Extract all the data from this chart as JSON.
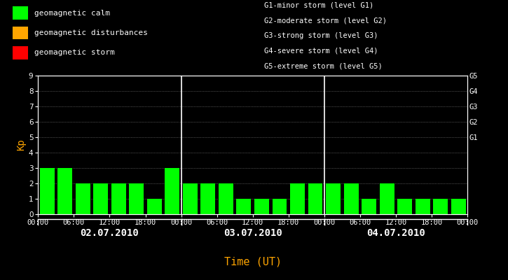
{
  "background_color": "#000000",
  "plot_bg_color": "#000000",
  "bar_color_calm": "#00ff00",
  "bar_color_disturb": "#ffa500",
  "bar_color_storm": "#ff0000",
  "axis_color": "#ffffff",
  "ylabel_color": "#ffa500",
  "xlabel": "Time (UT)",
  "xlabel_color": "#ffa500",
  "ylabel": "Kp",
  "ylim": [
    0,
    9
  ],
  "yticks": [
    0,
    1,
    2,
    3,
    4,
    5,
    6,
    7,
    8,
    9
  ],
  "right_labels": [
    "G1",
    "G2",
    "G3",
    "G4",
    "G5"
  ],
  "right_label_yticks": [
    5,
    6,
    7,
    8,
    9
  ],
  "dates": [
    "02.07.2010",
    "03.07.2010",
    "04.07.2010"
  ],
  "kp_values": [
    3,
    3,
    2,
    2,
    2,
    2,
    1,
    3,
    2,
    2,
    2,
    1,
    1,
    1,
    2,
    2,
    2,
    2,
    1,
    2,
    1,
    1,
    1,
    1
  ],
  "legend_entries": [
    {
      "label": "geomagnetic calm",
      "color": "#00ff00"
    },
    {
      "label": "geomagnetic disturbances",
      "color": "#ffa500"
    },
    {
      "label": "geomagnetic storm",
      "color": "#ff0000"
    }
  ],
  "storm_legend": [
    "G1-minor storm (level G1)",
    "G2-moderate storm (level G2)",
    "G3-strong storm (level G3)",
    "G4-severe storm (level G4)",
    "G5-extreme storm (level G5)"
  ],
  "grid_dot_color": "#888888",
  "tick_label_fontsize": 7.5,
  "legend_fontsize": 8,
  "monospace_font": "monospace"
}
